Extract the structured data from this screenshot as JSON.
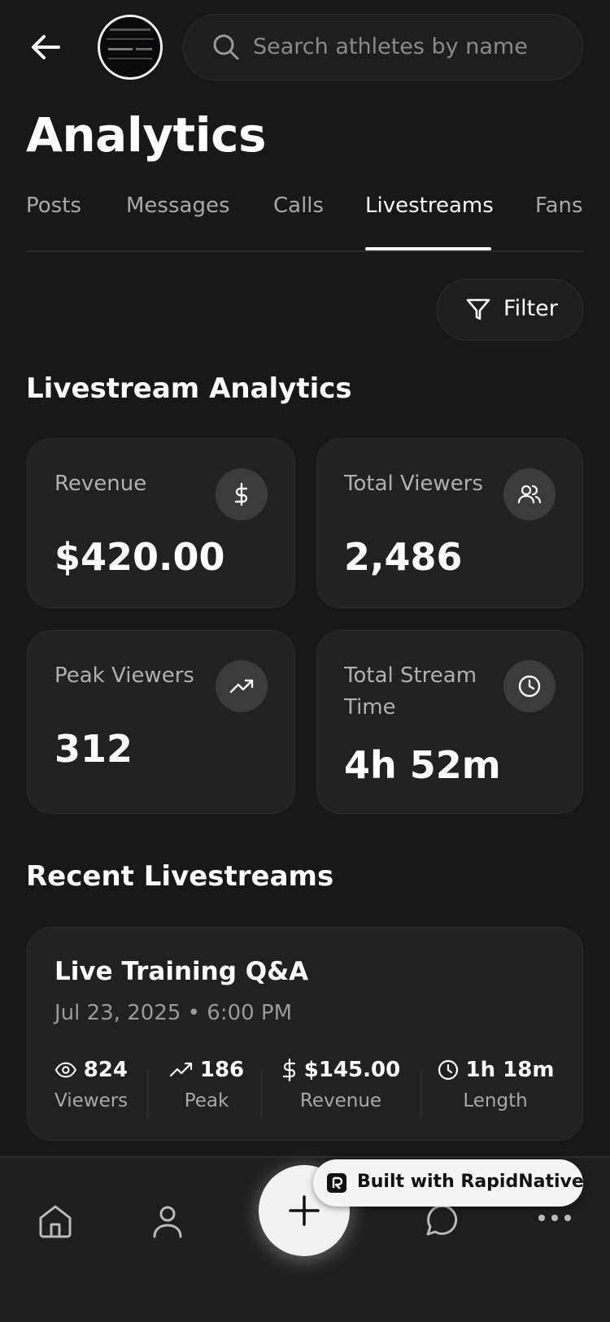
{
  "header": {
    "search_placeholder": "Search athletes by name",
    "title": "Analytics"
  },
  "tabs": [
    "Posts",
    "Messages",
    "Calls",
    "Livestreams",
    "Fans"
  ],
  "filter": "Filter",
  "analytics": {
    "title": "Livestream Analytics",
    "stats": [
      {
        "label": "Revenue",
        "value": "$420.00"
      },
      {
        "label": "Total Viewers",
        "value": "2,486"
      },
      {
        "label": "Peak Viewers",
        "value": "312"
      },
      {
        "label": "Total Stream Time",
        "value": "4h 52m"
      }
    ]
  },
  "recent": {
    "title": "Recent Livestreams",
    "streams": [
      {
        "title": "Live Training Q&A",
        "date": "Jul 23, 2025 • 6:00 PM",
        "metrics": [
          {
            "value": "824",
            "label": "Viewers"
          },
          {
            "value": "186",
            "label": "Peak"
          },
          {
            "value": "$145.00",
            "label": "Revenue"
          },
          {
            "value": "1h 18m",
            "label": "Length"
          }
        ]
      }
    ]
  },
  "badge": "Built with RapidNative"
}
